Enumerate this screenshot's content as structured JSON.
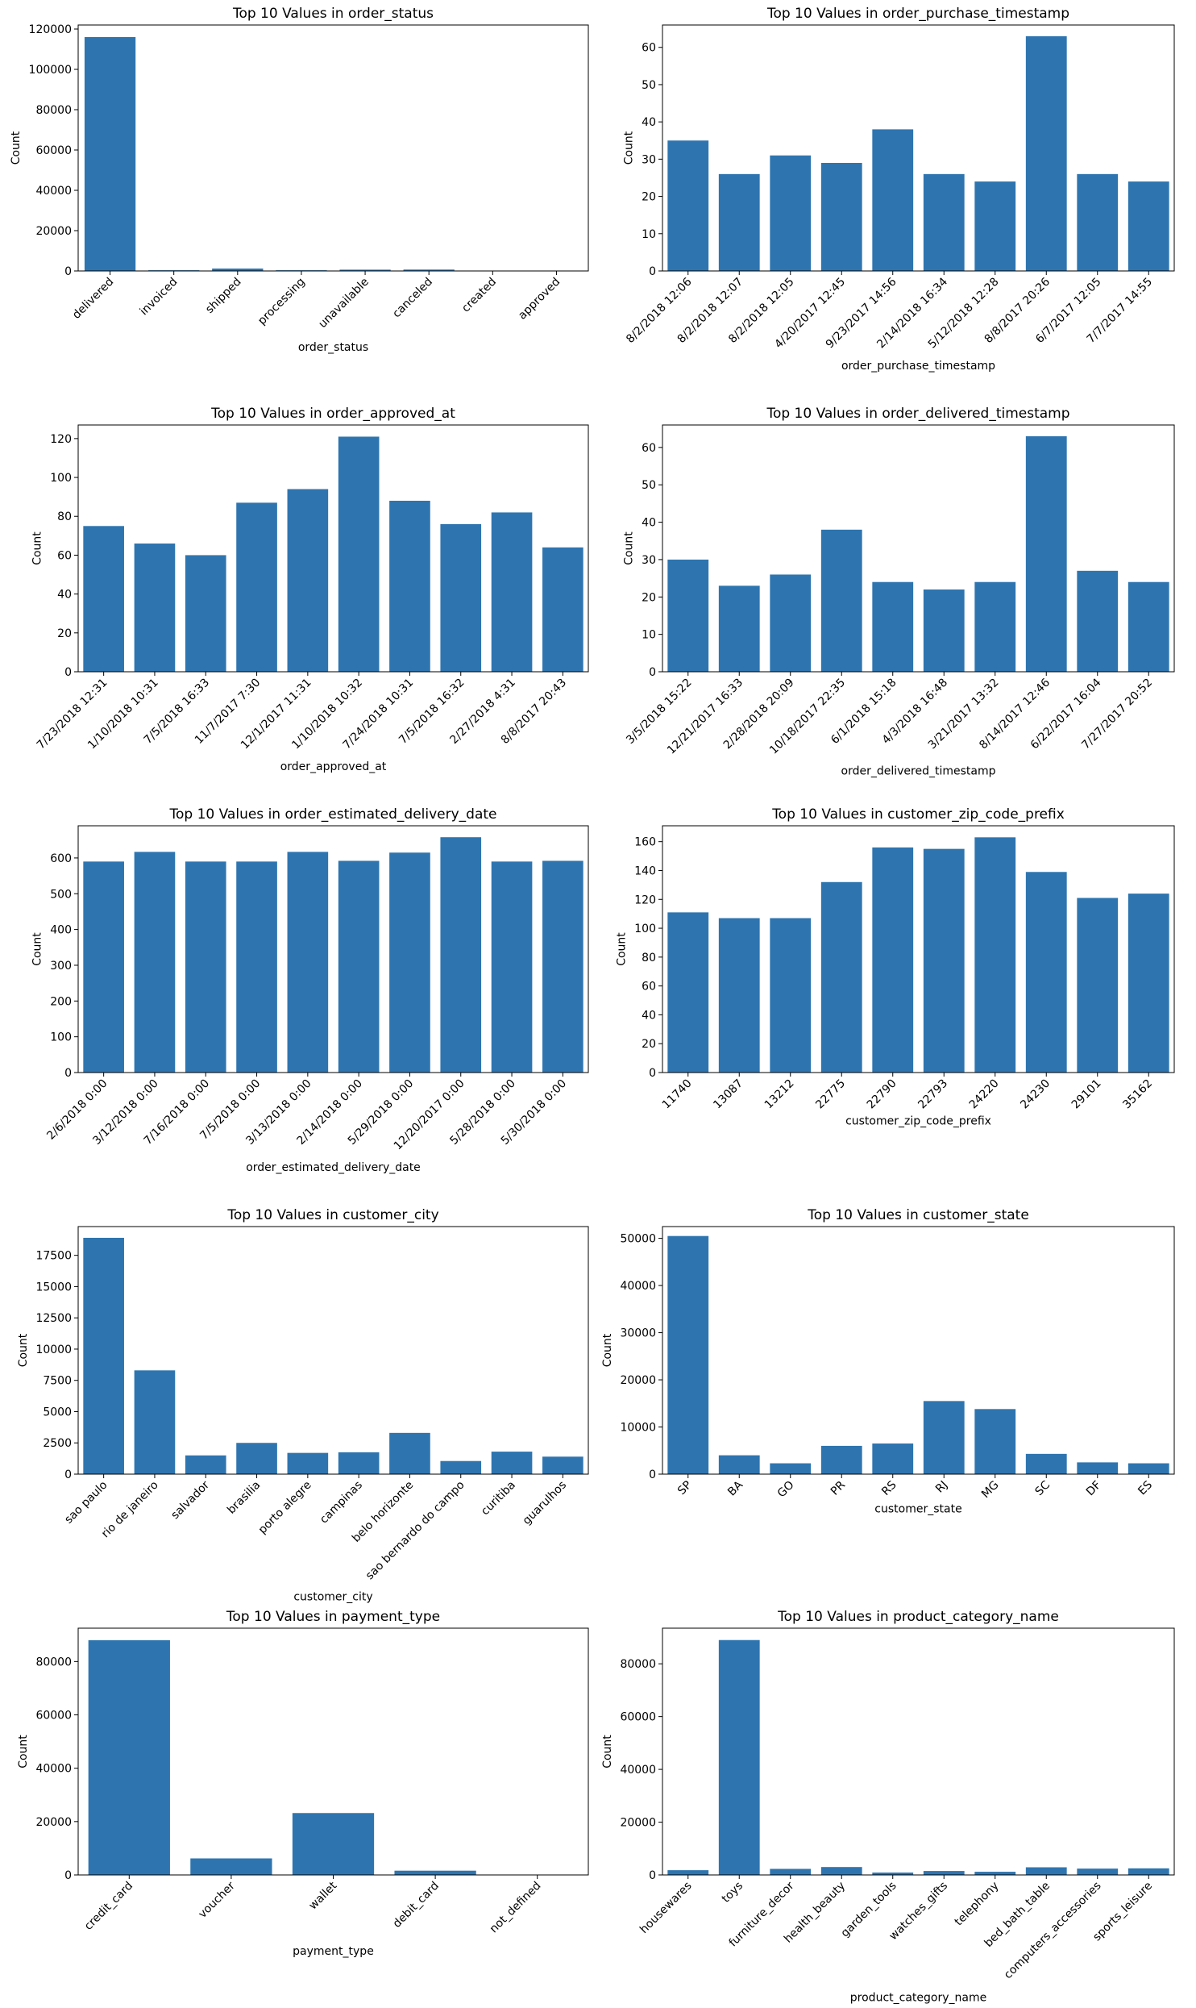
{
  "figure": {
    "colors": {
      "bar": "#2e75b0",
      "axis": "#000000",
      "background": "#ffffff"
    }
  },
  "chart_data": [
    {
      "type": "bar",
      "title": "Top 10 Values in order_status",
      "xlabel": "order_status",
      "ylabel": "Count",
      "ylim": [
        0,
        122000
      ],
      "yticks": [
        0,
        20000,
        40000,
        60000,
        80000,
        100000,
        120000
      ],
      "categories": [
        "delivered",
        "invoiced",
        "shipped",
        "processing",
        "unavailable",
        "canceled",
        "created",
        "approved"
      ],
      "values": [
        116000,
        350,
        1200,
        350,
        650,
        700,
        5,
        3
      ]
    },
    {
      "type": "bar",
      "title": "Top 10 Values in order_purchase_timestamp",
      "xlabel": "order_purchase_timestamp",
      "ylabel": "Count",
      "ylim": [
        0,
        66
      ],
      "yticks": [
        0,
        10,
        20,
        30,
        40,
        50,
        60
      ],
      "categories": [
        "8/2/2018 12:06",
        "8/2/2018 12:07",
        "8/2/2018 12:05",
        "4/20/2017 12:45",
        "9/23/2017 14:56",
        "2/14/2018 16:34",
        "5/12/2018 12:28",
        "8/8/2017 20:26",
        "6/7/2017 12:05",
        "7/7/2017 14:55"
      ],
      "values": [
        35,
        26,
        31,
        29,
        38,
        26,
        24,
        63,
        26,
        24
      ]
    },
    {
      "type": "bar",
      "title": "Top 10 Values in order_approved_at",
      "xlabel": "order_approved_at",
      "ylabel": "Count",
      "ylim": [
        0,
        127
      ],
      "yticks": [
        0,
        20,
        40,
        60,
        80,
        100,
        120
      ],
      "categories": [
        "7/23/2018 12:31",
        "1/10/2018 10:31",
        "7/5/2018 16:33",
        "11/7/2017 7:30",
        "12/1/2017 11:31",
        "1/10/2018 10:32",
        "7/24/2018 10:31",
        "7/5/2018 16:32",
        "2/27/2018 4:31",
        "8/8/2017 20:43"
      ],
      "values": [
        75,
        66,
        60,
        87,
        94,
        121,
        88,
        76,
        82,
        64
      ]
    },
    {
      "type": "bar",
      "title": "Top 10 Values in order_delivered_timestamp",
      "xlabel": "order_delivered_timestamp",
      "ylabel": "Count",
      "ylim": [
        0,
        66
      ],
      "yticks": [
        0,
        10,
        20,
        30,
        40,
        50,
        60
      ],
      "categories": [
        "3/5/2018 15:22",
        "12/21/2017 16:33",
        "2/28/2018 20:09",
        "10/18/2017 22:35",
        "6/1/2018 15:18",
        "4/3/2018 16:48",
        "3/21/2017 13:32",
        "8/14/2017 12:46",
        "6/22/2017 16:04",
        "7/27/2017 20:52"
      ],
      "values": [
        30,
        23,
        26,
        38,
        24,
        22,
        24,
        63,
        27,
        24
      ]
    },
    {
      "type": "bar",
      "title": "Top 10 Values in order_estimated_delivery_date",
      "xlabel": "order_estimated_delivery_date",
      "ylabel": "Count",
      "ylim": [
        0,
        690
      ],
      "yticks": [
        0,
        100,
        200,
        300,
        400,
        500,
        600
      ],
      "categories": [
        "2/6/2018 0:00",
        "3/12/2018 0:00",
        "7/16/2018 0:00",
        "7/5/2018 0:00",
        "3/13/2018 0:00",
        "2/14/2018 0:00",
        "5/29/2018 0:00",
        "12/20/2017 0:00",
        "5/28/2018 0:00",
        "5/30/2018 0:00"
      ],
      "values": [
        590,
        617,
        590,
        590,
        617,
        592,
        615,
        658,
        590,
        592
      ]
    },
    {
      "type": "bar",
      "title": "Top 10 Values in customer_zip_code_prefix",
      "xlabel": "customer_zip_code_prefix",
      "ylabel": "Count",
      "ylim": [
        0,
        171
      ],
      "yticks": [
        0,
        20,
        40,
        60,
        80,
        100,
        120,
        140,
        160
      ],
      "categories": [
        "11740",
        "13087",
        "13212",
        "22775",
        "22790",
        "22793",
        "24220",
        "24230",
        "29101",
        "35162"
      ],
      "values": [
        111,
        107,
        107,
        132,
        156,
        155,
        163,
        139,
        121,
        124
      ]
    },
    {
      "type": "bar",
      "title": "Top 10 Values in customer_city",
      "xlabel": "customer_city",
      "ylabel": "Count",
      "ylim": [
        0,
        19800
      ],
      "yticks": [
        0,
        2500,
        5000,
        7500,
        10000,
        12500,
        15000,
        17500
      ],
      "categories": [
        "sao paulo",
        "rio de janeiro",
        "salvador",
        "brasilia",
        "porto alegre",
        "campinas",
        "belo horizonte",
        "sao bernardo do campo",
        "curitiba",
        "guarulhos"
      ],
      "values": [
        18900,
        8300,
        1500,
        2500,
        1700,
        1750,
        3300,
        1050,
        1800,
        1400
      ]
    },
    {
      "type": "bar",
      "title": "Top 10 Values in customer_state",
      "xlabel": "customer_state",
      "ylabel": "Count",
      "ylim": [
        0,
        52500
      ],
      "yticks": [
        0,
        10000,
        20000,
        30000,
        40000,
        50000
      ],
      "categories": [
        "SP",
        "BA",
        "GO",
        "PR",
        "RS",
        "RJ",
        "MG",
        "SC",
        "DF",
        "ES"
      ],
      "values": [
        50500,
        4000,
        2300,
        6000,
        6500,
        15500,
        13800,
        4300,
        2500,
        2300
      ]
    },
    {
      "type": "bar",
      "title": "Top 10 Values in payment_type",
      "xlabel": "payment_type",
      "ylabel": "Count",
      "ylim": [
        0,
        92500
      ],
      "yticks": [
        0,
        20000,
        40000,
        60000,
        80000
      ],
      "categories": [
        "credit_card",
        "voucher",
        "wallet",
        "debit_card",
        "not_defined"
      ],
      "values": [
        88000,
        6200,
        23200,
        1600,
        3
      ]
    },
    {
      "type": "bar",
      "title": "Top 10 Values in product_category_name",
      "xlabel": "product_category_name",
      "ylabel": "Count",
      "ylim": [
        0,
        93500
      ],
      "yticks": [
        0,
        20000,
        40000,
        60000,
        80000
      ],
      "categories": [
        "housewares",
        "toys",
        "furniture_decor",
        "health_beauty",
        "garden_tools",
        "watches_gifts",
        "telephony",
        "bed_bath_table",
        "computers_accessories",
        "sports_leisure"
      ],
      "values": [
        1800,
        89000,
        2300,
        3000,
        900,
        1500,
        1200,
        2900,
        2400,
        2500
      ]
    }
  ]
}
